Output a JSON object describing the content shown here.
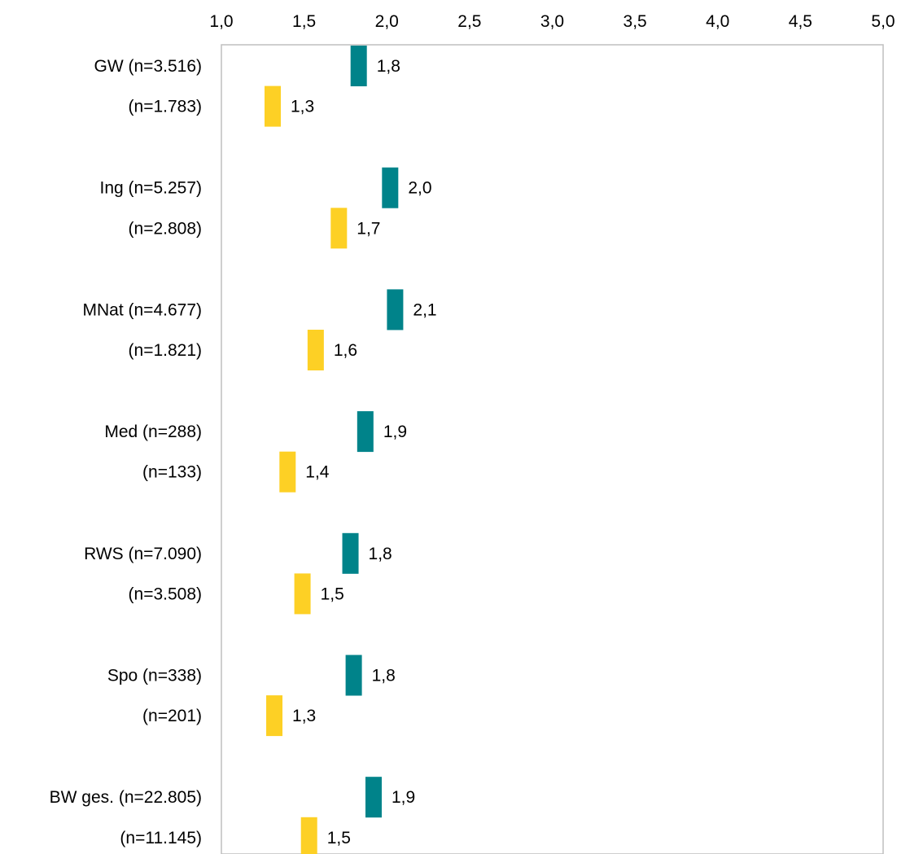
{
  "chart_data": {
    "type": "bar",
    "orientation": "horizontal",
    "xlim": [
      1.0,
      5.0
    ],
    "x_ticks": [
      {
        "value": 1.0,
        "label": "1,0"
      },
      {
        "value": 1.5,
        "label": "1,5"
      },
      {
        "value": 2.0,
        "label": "2,0"
      },
      {
        "value": 2.5,
        "label": "2,5"
      },
      {
        "value": 3.0,
        "label": "3,0"
      },
      {
        "value": 3.5,
        "label": "3,5"
      },
      {
        "value": 4.0,
        "label": "4,0"
      },
      {
        "value": 4.5,
        "label": "4,5"
      },
      {
        "value": 5.0,
        "label": "5,0"
      }
    ],
    "x_axis_position": "top",
    "grid": false,
    "legend": "none",
    "marker_style": "short vertical bar at value",
    "colors": {
      "series_1": "#00838A",
      "series_2": "#FDD025",
      "frame": "#BFBFBF"
    },
    "groups": [
      {
        "rows": [
          {
            "label": "GW (n=3.516)",
            "value": 1.83,
            "value_label": "1,8",
            "series": "series_1"
          },
          {
            "label": "(n=1.783)",
            "value": 1.31,
            "value_label": "1,3",
            "series": "series_2"
          }
        ]
      },
      {
        "rows": [
          {
            "label": "Ing (n=5.257)",
            "value": 2.02,
            "value_label": "2,0",
            "series": "series_1"
          },
          {
            "label": "(n=2.808)",
            "value": 1.71,
            "value_label": "1,7",
            "series": "series_2"
          }
        ]
      },
      {
        "rows": [
          {
            "label": "MNat (n=4.677)",
            "value": 2.05,
            "value_label": "2,1",
            "series": "series_1"
          },
          {
            "label": "(n=1.821)",
            "value": 1.57,
            "value_label": "1,6",
            "series": "series_2"
          }
        ]
      },
      {
        "rows": [
          {
            "label": "Med (n=288)",
            "value": 1.87,
            "value_label": "1,9",
            "series": "series_1"
          },
          {
            "label": "(n=133)",
            "value": 1.4,
            "value_label": "1,4",
            "series": "series_2"
          }
        ]
      },
      {
        "rows": [
          {
            "label": "RWS (n=7.090)",
            "value": 1.78,
            "value_label": "1,8",
            "series": "series_1"
          },
          {
            "label": "(n=3.508)",
            "value": 1.49,
            "value_label": "1,5",
            "series": "series_2"
          }
        ]
      },
      {
        "rows": [
          {
            "label": "Spo (n=338)",
            "value": 1.8,
            "value_label": "1,8",
            "series": "series_1"
          },
          {
            "label": "(n=201)",
            "value": 1.32,
            "value_label": "1,3",
            "series": "series_2"
          }
        ]
      },
      {
        "rows": [
          {
            "label": "BW ges. (n=22.805)",
            "value": 1.92,
            "value_label": "1,9",
            "series": "series_1"
          },
          {
            "label": "(n=11.145)",
            "value": 1.53,
            "value_label": "1,5",
            "series": "series_2"
          }
        ]
      }
    ]
  }
}
